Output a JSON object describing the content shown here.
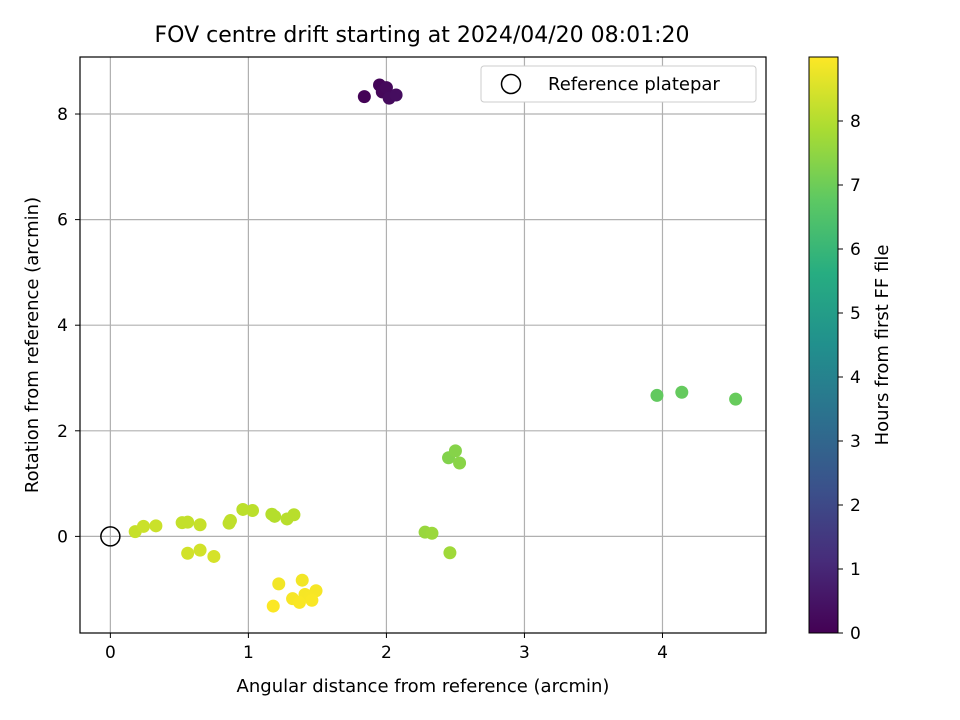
{
  "chart_data": {
    "type": "scatter",
    "title": "FOV centre drift starting at 2024/04/20 08:01:20",
    "xlabel": "Angular distance from reference (arcmin)",
    "ylabel": "Rotation from reference (arcmin)",
    "xlim": [
      -0.22,
      4.75
    ],
    "ylim": [
      -1.83,
      9.08
    ],
    "xticks": [
      0,
      1,
      2,
      3,
      4
    ],
    "yticks": [
      0,
      2,
      4,
      6,
      8
    ],
    "grid": true,
    "legend": {
      "placement": "top-right",
      "entries": [
        "Reference platepar"
      ]
    },
    "reference_point": {
      "x": 0,
      "y": 0,
      "label": "Reference platepar",
      "marker": "open-circle"
    },
    "colorbar": {
      "label": "Hours from first FF file",
      "colormap": "viridis",
      "range": [
        0,
        9.0
      ],
      "ticks": [
        0,
        1,
        2,
        3,
        4,
        5,
        6,
        7,
        8
      ]
    },
    "series": [
      {
        "points": [
          {
            "x": 1.84,
            "y": 8.33,
            "c": 0.05
          },
          {
            "x": 1.95,
            "y": 8.55,
            "c": 0.1
          },
          {
            "x": 1.97,
            "y": 8.42,
            "c": 0.15
          },
          {
            "x": 2.0,
            "y": 8.5,
            "c": 0.2
          },
          {
            "x": 2.02,
            "y": 8.3,
            "c": 0.25
          },
          {
            "x": 2.07,
            "y": 8.36,
            "c": 0.3
          },
          {
            "x": 3.96,
            "y": 2.67,
            "c": 6.8
          },
          {
            "x": 4.14,
            "y": 2.73,
            "c": 6.85
          },
          {
            "x": 4.53,
            "y": 2.6,
            "c": 6.9
          },
          {
            "x": 2.45,
            "y": 1.49,
            "c": 7.3
          },
          {
            "x": 2.5,
            "y": 1.62,
            "c": 7.35
          },
          {
            "x": 2.53,
            "y": 1.39,
            "c": 7.4
          },
          {
            "x": 2.28,
            "y": 0.08,
            "c": 7.6
          },
          {
            "x": 2.33,
            "y": 0.06,
            "c": 7.65
          },
          {
            "x": 2.46,
            "y": -0.31,
            "c": 7.7
          },
          {
            "x": 1.17,
            "y": 0.42,
            "c": 8.0
          },
          {
            "x": 1.19,
            "y": 0.38,
            "c": 8.0
          },
          {
            "x": 1.28,
            "y": 0.33,
            "c": 8.05
          },
          {
            "x": 1.33,
            "y": 0.41,
            "c": 8.05
          },
          {
            "x": 0.96,
            "y": 0.51,
            "c": 8.1
          },
          {
            "x": 1.03,
            "y": 0.49,
            "c": 8.1
          },
          {
            "x": 0.86,
            "y": 0.25,
            "c": 8.15
          },
          {
            "x": 0.87,
            "y": 0.3,
            "c": 8.15
          },
          {
            "x": 0.52,
            "y": 0.26,
            "c": 8.2
          },
          {
            "x": 0.56,
            "y": 0.27,
            "c": 8.2
          },
          {
            "x": 0.65,
            "y": 0.22,
            "c": 8.25
          },
          {
            "x": 0.18,
            "y": 0.09,
            "c": 8.25
          },
          {
            "x": 0.24,
            "y": 0.19,
            "c": 8.3
          },
          {
            "x": 0.33,
            "y": 0.2,
            "c": 8.3
          },
          {
            "x": 0.56,
            "y": -0.32,
            "c": 8.4
          },
          {
            "x": 0.65,
            "y": -0.26,
            "c": 8.4
          },
          {
            "x": 0.75,
            "y": -0.38,
            "c": 8.45
          },
          {
            "x": 1.22,
            "y": -0.9,
            "c": 8.85
          },
          {
            "x": 1.39,
            "y": -0.83,
            "c": 8.85
          },
          {
            "x": 1.49,
            "y": -1.03,
            "c": 8.9
          },
          {
            "x": 1.41,
            "y": -1.1,
            "c": 8.9
          },
          {
            "x": 1.45,
            "y": -1.15,
            "c": 8.92
          },
          {
            "x": 1.32,
            "y": -1.18,
            "c": 8.92
          },
          {
            "x": 1.46,
            "y": -1.21,
            "c": 8.95
          },
          {
            "x": 1.37,
            "y": -1.25,
            "c": 8.95
          },
          {
            "x": 1.18,
            "y": -1.32,
            "c": 8.97
          }
        ]
      }
    ]
  }
}
